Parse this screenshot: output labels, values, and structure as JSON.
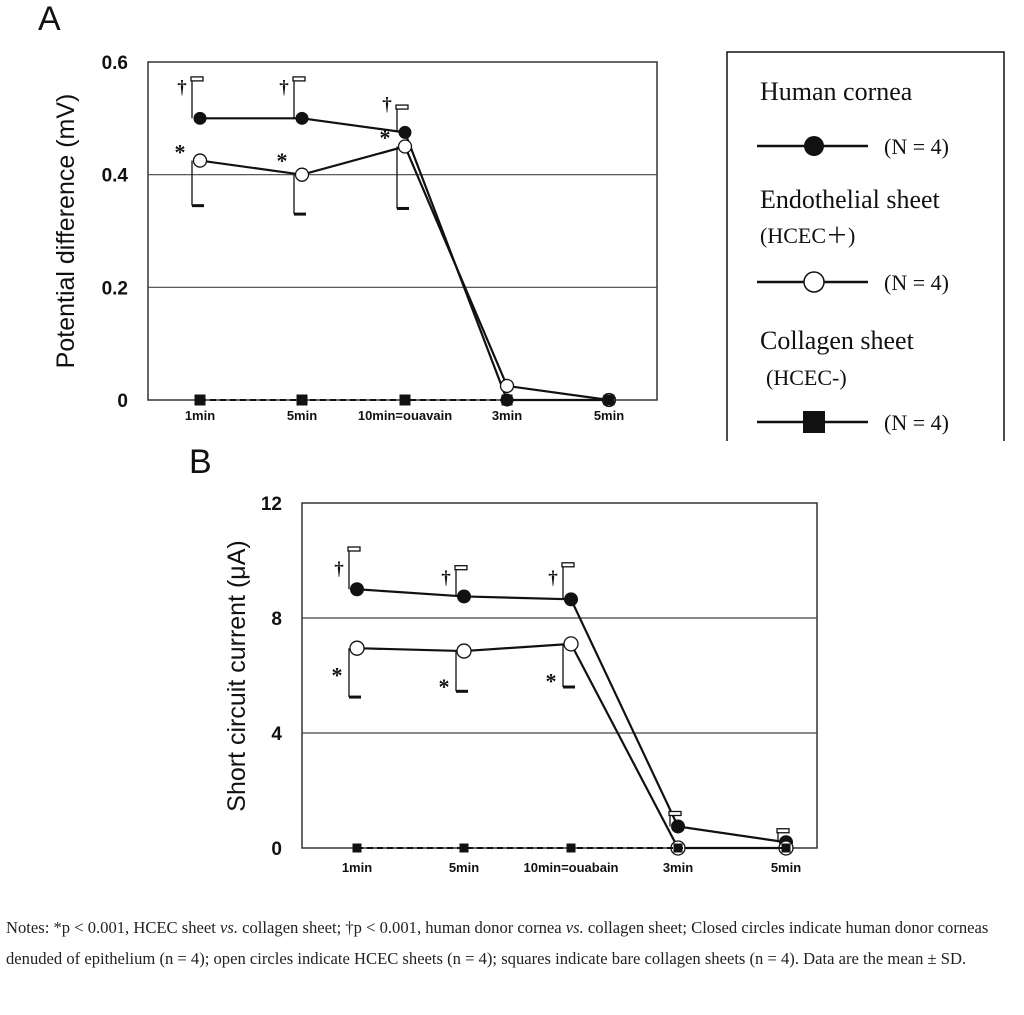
{
  "colors": {
    "line": "#111111",
    "grid": "#444444",
    "text": "#111111"
  },
  "legend": {
    "entries": [
      {
        "name": "Human cornea",
        "sub": "",
        "n": "(N = 4)",
        "marker": "filled-circle"
      },
      {
        "name": "Endothelial sheet",
        "sub": "(HCEC＋)",
        "n": "(N = 4)",
        "marker": "open-circle"
      },
      {
        "name": "Collagen sheet",
        "sub": "(HCEC-)",
        "n": "(N = 4)",
        "marker": "filled-square"
      }
    ]
  },
  "chart_data": [
    {
      "panel": "A",
      "type": "line",
      "ylabel": "Potential difference (mV)",
      "ylim": [
        0,
        0.6
      ],
      "yticks": [
        0,
        0.2,
        0.4,
        0.6
      ],
      "ytick_labels": [
        "0",
        "0.2",
        "0.4",
        "0.6"
      ],
      "categories": [
        "1min",
        "5min",
        "10min=ouavain",
        "3min",
        "5min"
      ],
      "series": [
        {
          "name": "Human cornea",
          "marker": "filled-circle",
          "values": [
            0.5,
            0.5,
            0.475,
            0.0,
            0.0
          ],
          "error_plus": [
            0.07,
            0.07,
            0.045,
            0,
            0
          ]
        },
        {
          "name": "Endothelial sheet (HCEC+)",
          "marker": "open-circle",
          "values": [
            0.425,
            0.4,
            0.45,
            0.025,
            0.0
          ],
          "error_minus": [
            0.08,
            0.07,
            0.11,
            0,
            0
          ]
        },
        {
          "name": "Collagen sheet (HCEC-)",
          "marker": "filled-square",
          "values": [
            0,
            0,
            0,
            0,
            0
          ]
        }
      ],
      "annotations": [
        {
          "text": "†",
          "category": 0,
          "y": 0.555
        },
        {
          "text": "†",
          "category": 1,
          "y": 0.555
        },
        {
          "text": "†",
          "category": 2,
          "y": 0.525
        },
        {
          "text": "*",
          "category": 0,
          "y": 0.445
        },
        {
          "text": "*",
          "category": 1,
          "y": 0.43
        },
        {
          "text": "*",
          "category": 2,
          "y": 0.47
        }
      ]
    },
    {
      "panel": "B",
      "type": "line",
      "ylabel": "Short circuit current (μA)",
      "ylim": [
        0,
        12
      ],
      "yticks": [
        0,
        4,
        8,
        12
      ],
      "ytick_labels": [
        "0",
        "4",
        "8",
        "12"
      ],
      "categories": [
        "1min",
        "5min",
        "10min=ouabain",
        "3min",
        "5min"
      ],
      "series": [
        {
          "name": "Human cornea",
          "marker": "filled-circle",
          "values": [
            9.0,
            8.75,
            8.65,
            0.75,
            0.2
          ],
          "error_plus": [
            1.4,
            1.0,
            1.2,
            0.45,
            0.4
          ]
        },
        {
          "name": "Endothelial sheet (HCEC+)",
          "marker": "open-circle",
          "values": [
            6.95,
            6.85,
            7.1,
            0.0,
            0.0
          ],
          "error_minus": [
            1.7,
            1.4,
            1.5,
            0,
            0
          ]
        },
        {
          "name": "Collagen sheet (HCEC-)",
          "marker": "filled-square",
          "values": [
            0,
            0,
            0,
            0,
            0
          ]
        }
      ],
      "annotations": [
        {
          "text": "†",
          "category": 0,
          "y": 9.7
        },
        {
          "text": "†",
          "category": 1,
          "y": 9.4
        },
        {
          "text": "†",
          "category": 2,
          "y": 9.4
        },
        {
          "text": "*",
          "category": 0,
          "y": 6.1
        },
        {
          "text": "*",
          "category": 1,
          "y": 5.7
        },
        {
          "text": "*",
          "category": 2,
          "y": 5.9
        }
      ]
    }
  ],
  "panel_labels": [
    "A",
    "B"
  ],
  "notes": {
    "p1": "Notes: *p < 0.001, HCEC sheet ",
    "vs1": "vs.",
    "p2": " collagen sheet; †p < 0.001, human donor cornea ",
    "vs2": "vs.",
    "p3": " collagen sheet; Closed circles indicate human donor corneas denuded of epithelium (n = 4); open circles indicate HCEC sheets (n = 4); squares indicate bare collagen sheets (n = 4). Data are the mean ± SD."
  }
}
